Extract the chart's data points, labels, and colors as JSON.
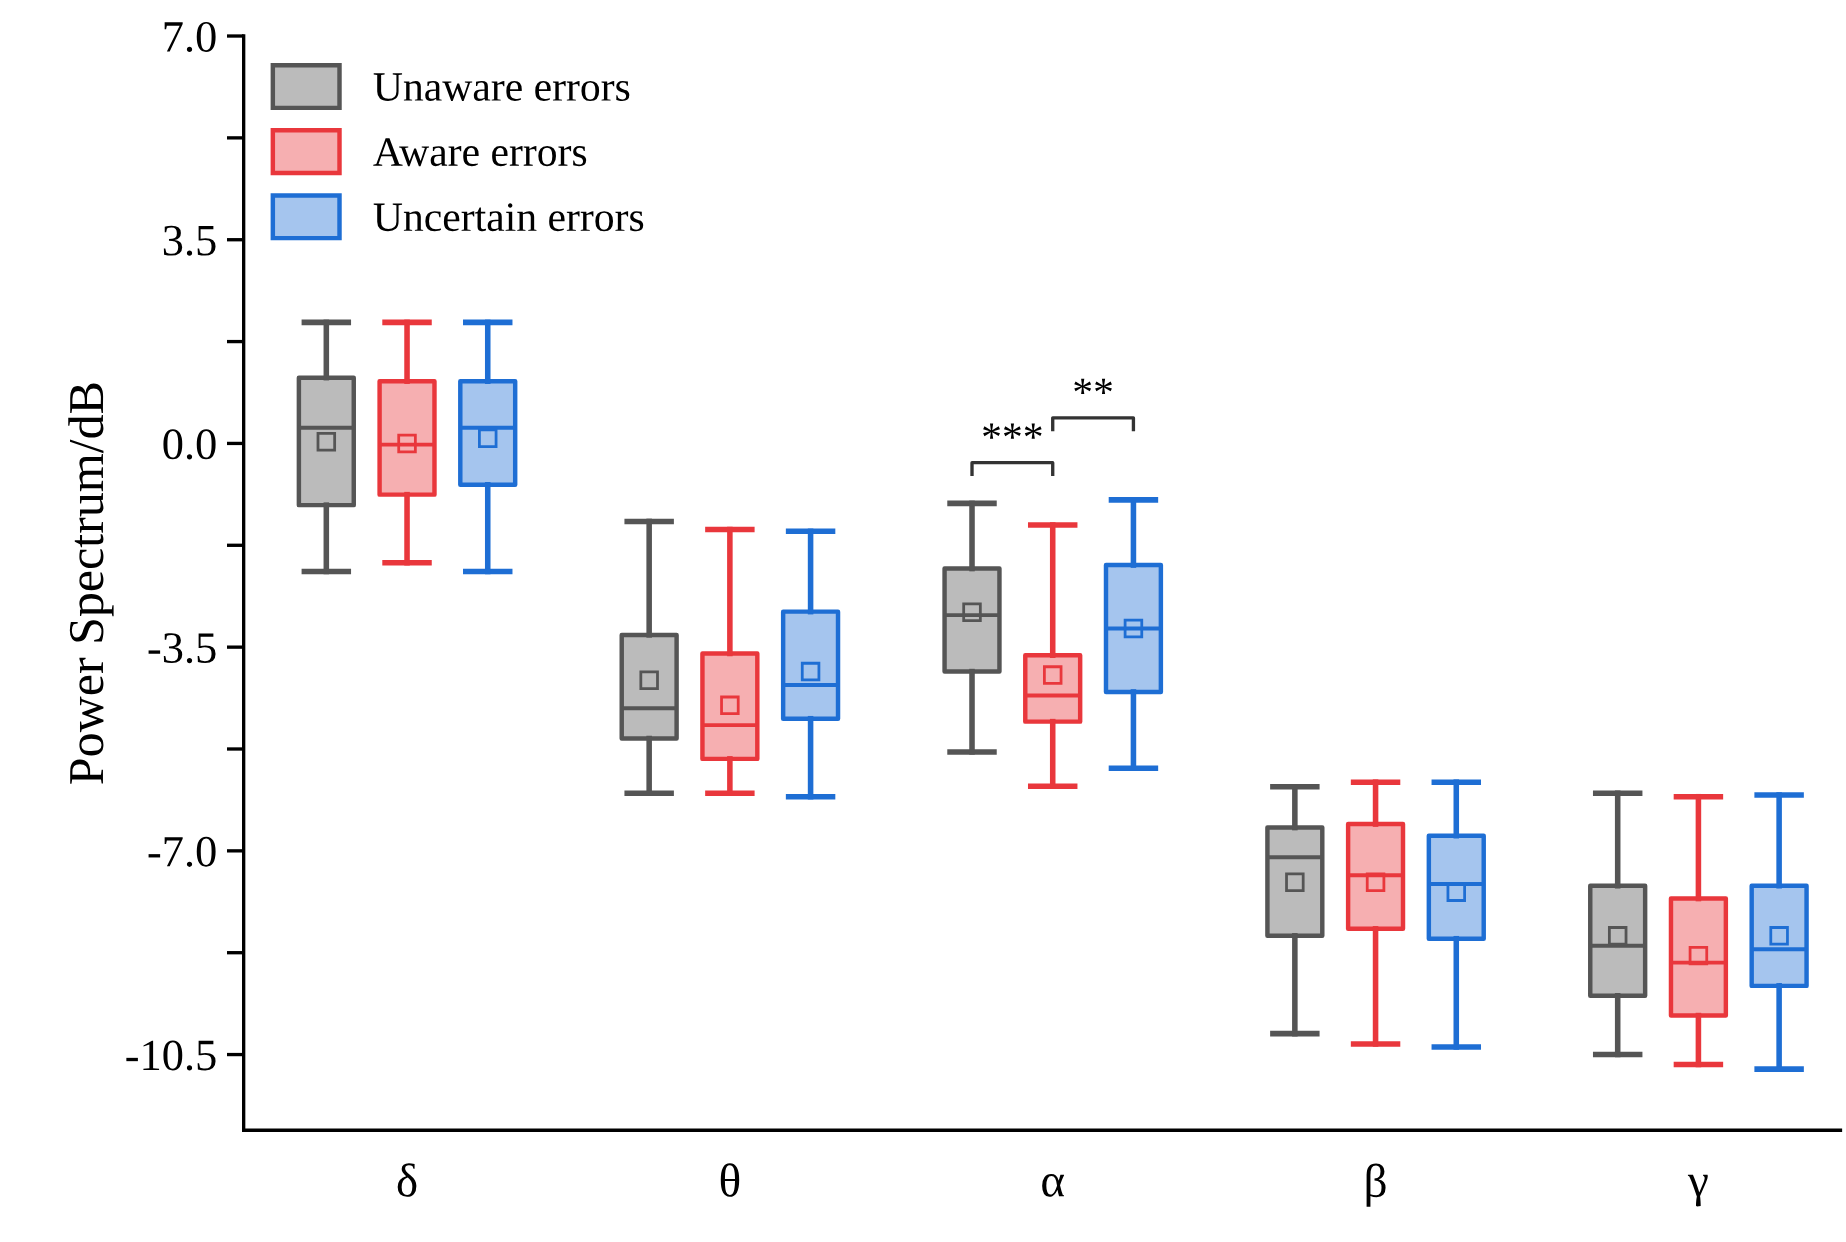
{
  "chart_data": {
    "type": "box",
    "ylabel": "Power Spectrum/dB",
    "categories": [
      "δ",
      "θ",
      "α",
      "β",
      "γ"
    ],
    "ylim": [
      -11.8,
      7.0
    ],
    "yticks": [
      {
        "value": -10.5,
        "label": "-10.5"
      },
      {
        "value": -8.75,
        "label": null
      },
      {
        "value": -7.0,
        "label": "-7.0"
      },
      {
        "value": -5.25,
        "label": null
      },
      {
        "value": -3.5,
        "label": "-3.5"
      },
      {
        "value": -1.75,
        "label": null
      },
      {
        "value": 0.0,
        "label": "0.0"
      },
      {
        "value": 1.75,
        "label": null
      },
      {
        "value": 3.5,
        "label": "3.5"
      },
      {
        "value": 5.25,
        "label": null
      },
      {
        "value": 7.0,
        "label": "7.0"
      }
    ],
    "legend": "top left",
    "grid": false,
    "annotations": [
      "***",
      "**"
    ],
    "series": [
      {
        "name": "Unaware errors",
        "color": "#bbbbbb",
        "boxes": [
          {
            "low": -2.2,
            "q1": -1.06,
            "median": 0.27,
            "q3": 1.13,
            "high": 2.08,
            "mean": 0.03
          },
          {
            "low": -6.01,
            "q1": -5.07,
            "median": -4.55,
            "q3": -3.29,
            "high": -1.34,
            "mean": -4.07
          },
          {
            "low": -5.3,
            "q1": -3.92,
            "median": -2.95,
            "q3": -2.15,
            "high": -1.03,
            "mean": -2.9
          },
          {
            "low": -10.14,
            "q1": -8.46,
            "median": -7.11,
            "q3": -6.6,
            "high": -5.9,
            "mean": -7.54
          },
          {
            "low": -10.5,
            "q1": -9.49,
            "median": -8.63,
            "q3": -7.6,
            "high": -6.01,
            "mean": -8.46
          }
        ]
      },
      {
        "name": "Aware errors",
        "color": "#f6afb1",
        "boxes": [
          {
            "low": -2.05,
            "q1": -0.88,
            "median": -0.02,
            "q3": 1.07,
            "high": 2.08,
            "mean": 0.0
          },
          {
            "low": -6.01,
            "q1": -5.42,
            "median": -4.84,
            "q3": -3.61,
            "high": -1.48,
            "mean": -4.5
          },
          {
            "low": -5.89,
            "q1": -4.78,
            "median": -4.33,
            "q3": -3.64,
            "high": -1.4,
            "mean": -3.98
          },
          {
            "low": -10.32,
            "q1": -8.34,
            "median": -7.42,
            "q3": -6.54,
            "high": -5.82,
            "mean": -7.54
          },
          {
            "low": -10.67,
            "q1": -9.83,
            "median": -8.92,
            "q3": -7.82,
            "high": -6.07,
            "mean": -8.8
          }
        ]
      },
      {
        "name": "Uncertain errors",
        "color": "#a5c5ee",
        "boxes": [
          {
            "low": -2.2,
            "q1": -0.71,
            "median": 0.27,
            "q3": 1.07,
            "high": 2.08,
            "mean": 0.09
          },
          {
            "low": -6.07,
            "q1": -4.73,
            "median": -4.15,
            "q3": -2.89,
            "high": -1.51,
            "mean": -3.92
          },
          {
            "low": -5.58,
            "q1": -4.27,
            "median": -3.18,
            "q3": -2.09,
            "high": -0.97,
            "mean": -3.18
          },
          {
            "low": -10.37,
            "q1": -8.51,
            "median": -7.57,
            "q3": -6.74,
            "high": -5.82,
            "mean": -7.71
          },
          {
            "low": -10.75,
            "q1": -9.32,
            "median": -8.69,
            "q3": -7.6,
            "high": -6.04,
            "mean": -8.46
          }
        ]
      }
    ]
  }
}
